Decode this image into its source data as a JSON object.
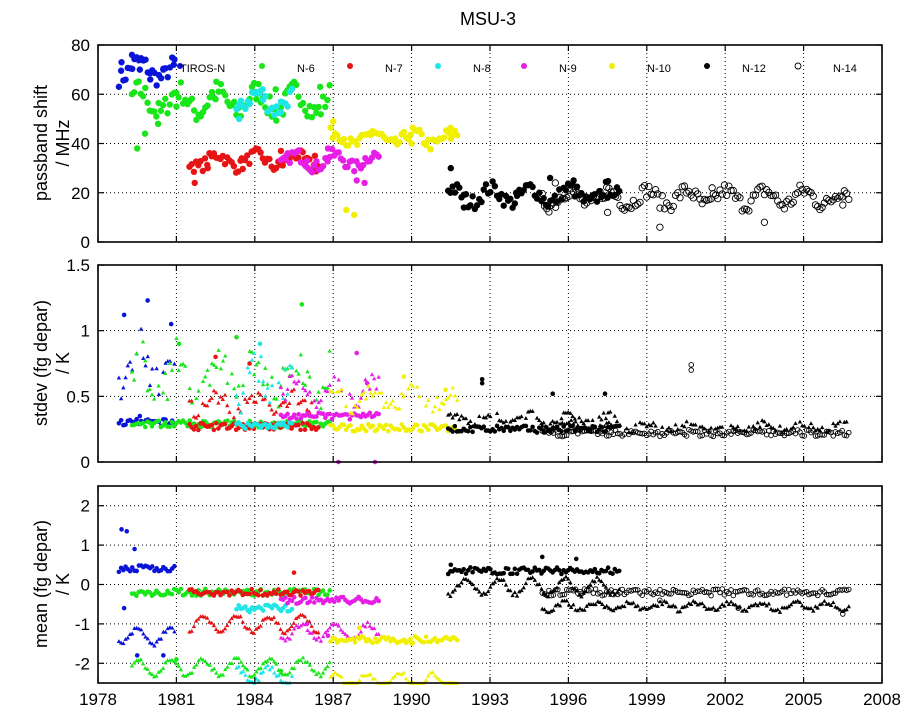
{
  "title": "MSU-3",
  "colors": {
    "TIROS-N": "#0a14d8",
    "N-6": "#19e619",
    "N-7": "#e61414",
    "N-8": "#1ee6e6",
    "N-9": "#e61ee6",
    "N-10": "#f0f000",
    "N-12": "#000000",
    "N-14": "#000000"
  },
  "chart_data": [
    {
      "type": "scatter",
      "title": "MSU-3",
      "ylabel": [
        "passband shift",
        "/ MHz"
      ],
      "xlim": [
        1978,
        2008
      ],
      "ylim": [
        0,
        80
      ],
      "yticks": [
        "0",
        "20",
        "40",
        "60",
        "80"
      ],
      "grid": true,
      "legend_position": "top, inside plot",
      "series": [
        {
          "name": "TIROS-N",
          "x_range": [
            1978.8,
            1981.0
          ],
          "level": 70,
          "spread": 7,
          "marker": "filled",
          "points": [
            [
              1978.9,
              73
            ],
            [
              1979.3,
              76
            ],
            [
              1979.6,
              70
            ],
            [
              1980.0,
              66
            ],
            [
              1980.5,
              70
            ],
            [
              1980.9,
              72
            ]
          ]
        },
        {
          "name": "N-6",
          "x_range": [
            1979.3,
            1986.9
          ],
          "level": 57,
          "spread": 9,
          "marker": "filled",
          "points": [
            [
              1979.5,
              38
            ],
            [
              1979.8,
              44
            ],
            [
              1980.3,
              48
            ],
            [
              1981.0,
              55
            ],
            [
              1982.5,
              58
            ],
            [
              1984.8,
              62
            ],
            [
              1986.5,
              63
            ]
          ]
        },
        {
          "name": "N-7",
          "x_range": [
            1981.5,
            1986.5
          ],
          "level": 33,
          "spread": 5,
          "marker": "filled",
          "points": [
            [
              1981.7,
              24
            ],
            [
              1982.2,
              30
            ],
            [
              1983.5,
              34
            ],
            [
              1985.0,
              37
            ],
            [
              1986.3,
              35
            ]
          ]
        },
        {
          "name": "N-8",
          "x_range": [
            1983.3,
            1985.5
          ],
          "level": 57,
          "spread": 7,
          "marker": "filled",
          "points": [
            [
              1983.4,
              50
            ],
            [
              1983.8,
              56
            ],
            [
              1984.3,
              62
            ],
            [
              1985.0,
              57
            ]
          ]
        },
        {
          "name": "N-9",
          "x_range": [
            1985.0,
            1988.8
          ],
          "level": 33,
          "spread": 5,
          "marker": "filled",
          "points": [
            [
              1985.2,
              35
            ],
            [
              1986.0,
              33
            ],
            [
              1986.8,
              38
            ],
            [
              1987.9,
              25
            ],
            [
              1988.2,
              24
            ]
          ]
        },
        {
          "name": "N-10",
          "x_range": [
            1986.9,
            1991.8
          ],
          "level": 42,
          "spread": 5,
          "marker": "filled",
          "points": [
            [
              1987.0,
              49
            ],
            [
              1987.5,
              13
            ],
            [
              1987.8,
              11
            ],
            [
              1988.5,
              45
            ],
            [
              1990.0,
              40
            ],
            [
              1991.5,
              42
            ]
          ]
        },
        {
          "name": "N-12",
          "x_range": [
            1991.4,
            1998.0
          ],
          "level": 19,
          "spread": 6,
          "marker": "filled",
          "points": [
            [
              1991.5,
              30
            ],
            [
              1992.0,
              14
            ],
            [
              1994.0,
              20
            ],
            [
              1995.3,
              26
            ],
            [
              1996.2,
              25
            ],
            [
              1997.5,
              18
            ]
          ]
        },
        {
          "name": "N-14",
          "x_range": [
            1995.0,
            2006.8
          ],
          "level": 18,
          "spread": 6,
          "marker": "open circle",
          "points": [
            [
              1995.5,
              24
            ],
            [
              1997.5,
              12
            ],
            [
              1999.5,
              6
            ],
            [
              2001.5,
              22
            ],
            [
              2003.5,
              8
            ],
            [
              2006.5,
              15
            ]
          ]
        }
      ]
    },
    {
      "type": "scatter",
      "ylabel": [
        "stdev (fg depar)",
        "/ K"
      ],
      "xlim": [
        1978,
        2008
      ],
      "ylim": [
        0,
        1.5
      ],
      "yticks": [
        "0",
        "0.5",
        "1",
        "1.5"
      ],
      "grid": true,
      "markers": "circles and triangles per satellite",
      "series": [
        {
          "name": "TIROS-N",
          "x_range": [
            1978.8,
            1981.0
          ],
          "circle_level": 0.3,
          "triangle_level": 0.75,
          "triangle_spread": 0.3,
          "points": [
            [
              1979.0,
              1.12
            ],
            [
              1979.9,
              1.23
            ],
            [
              1980.8,
              1.05
            ],
            [
              1979.6,
              0.35
            ]
          ]
        },
        {
          "name": "N-6",
          "x_range": [
            1979.3,
            1986.9
          ],
          "circle_level": 0.29,
          "triangle_level": 0.65,
          "triangle_spread": 0.3,
          "points": [
            [
              1981.1,
              0.9
            ],
            [
              1983.3,
              0.95
            ],
            [
              1985.8,
              1.2
            ]
          ]
        },
        {
          "name": "N-7",
          "x_range": [
            1981.5,
            1986.5
          ],
          "circle_level": 0.27,
          "triangle_level": 0.45,
          "triangle_spread": 0.12,
          "points": [
            [
              1982.5,
              0.8
            ],
            [
              1983.8,
              0.75
            ]
          ]
        },
        {
          "name": "N-8",
          "x_range": [
            1983.3,
            1985.5
          ],
          "circle_level": 0.28,
          "triangle_level": 0.6,
          "triangle_spread": 0.25,
          "points": [
            [
              1984.2,
              0.9
            ]
          ]
        },
        {
          "name": "N-9",
          "x_range": [
            1985.0,
            1988.8
          ],
          "circle_level": 0.35,
          "triangle_level": 0.55,
          "triangle_spread": 0.15,
          "points": [
            [
              1987.9,
              0.83
            ],
            [
              1988.3,
              0.6
            ],
            [
              1987.2,
              0.0
            ],
            [
              1988.6,
              0.0
            ]
          ]
        },
        {
          "name": "N-10",
          "x_range": [
            1986.9,
            1991.8
          ],
          "circle_level": 0.26,
          "triangle_level": 0.48,
          "triangle_spread": 0.12,
          "points": [
            [
              1989.7,
              0.65
            ],
            [
              1991.3,
              0.55
            ]
          ]
        },
        {
          "name": "N-12",
          "x_range": [
            1991.4,
            1998.0
          ],
          "circle_level": 0.25,
          "triangle_level": 0.33,
          "triangle_spread": 0.06,
          "points": [
            [
              1992.7,
              0.63
            ],
            [
              1992.7,
              0.6
            ],
            [
              1995.4,
              0.52
            ],
            [
              1997.4,
              0.52
            ]
          ]
        },
        {
          "name": "N-14",
          "x_range": [
            1995.0,
            2006.8
          ],
          "circle_level": 0.22,
          "triangle_level": 0.27,
          "triangle_spread": 0.05,
          "points": [
            [
              2000.7,
              0.74
            ],
            [
              2000.7,
              0.7
            ]
          ]
        }
      ]
    },
    {
      "type": "scatter",
      "ylabel": [
        "mean (fg depar)",
        "/ K"
      ],
      "xlabel": "",
      "xlim": [
        1978,
        2008
      ],
      "ylim": [
        -2.5,
        2.5
      ],
      "yticks": [
        "-2",
        "-1",
        "0",
        "1",
        "2"
      ],
      "xticks": [
        "1978",
        "1981",
        "1984",
        "1987",
        "1990",
        "1993",
        "1996",
        "1999",
        "2002",
        "2005",
        "2008"
      ],
      "grid": true,
      "markers": "circles and triangles per satellite",
      "series": [
        {
          "name": "TIROS-N",
          "x_range": [
            1978.8,
            1981.0
          ],
          "circle_level": 0.4,
          "triangle_level": -1.3,
          "points": [
            [
              1978.9,
              1.4
            ],
            [
              1979.1,
              1.35
            ],
            [
              1979.4,
              0.9
            ],
            [
              1979.0,
              -0.6
            ],
            [
              1979.5,
              -1.8
            ],
            [
              1980.5,
              -1.8
            ]
          ]
        },
        {
          "name": "N-6",
          "x_range": [
            1979.3,
            1986.9
          ],
          "circle_level": -0.2,
          "triangle_level": -2.1,
          "points": [
            [
              1981.0,
              -1.9
            ],
            [
              1985.0,
              -2.2
            ]
          ]
        },
        {
          "name": "N-7",
          "x_range": [
            1981.5,
            1986.5
          ],
          "circle_level": -0.2,
          "triangle_level": -1.0,
          "points": [
            [
              1982.5,
              -0.2
            ],
            [
              1985.5,
              0.3
            ]
          ]
        },
        {
          "name": "N-8",
          "x_range": [
            1983.3,
            1985.5
          ],
          "circle_level": -0.6,
          "triangle_level": -2.3,
          "points": [
            [
              1983.8,
              -0.7
            ]
          ]
        },
        {
          "name": "N-9",
          "x_range": [
            1985.0,
            1988.8
          ],
          "circle_level": -0.4,
          "triangle_level": -1.2,
          "points": [
            [
              1986.0,
              -1.0
            ],
            [
              1986.8,
              -1.3
            ]
          ]
        },
        {
          "name": "N-10",
          "x_range": [
            1986.9,
            1991.8
          ],
          "circle_level": -1.4,
          "triangle_level": -2.45,
          "points": [
            [
              1988.0,
              -1.1
            ],
            [
              1990.0,
              -1.5
            ]
          ]
        },
        {
          "name": "N-12",
          "x_range": [
            1991.4,
            1998.0
          ],
          "circle_level": 0.35,
          "triangle_level": -0.05,
          "points": [
            [
              1991.5,
              0.5
            ],
            [
              1995.0,
              0.7
            ],
            [
              1996.3,
              0.65
            ]
          ]
        },
        {
          "name": "N-14",
          "x_range": [
            1995.0,
            2006.8
          ],
          "circle_level": -0.2,
          "triangle_level": -0.55,
          "points": [
            [
              1999.5,
              -0.4
            ],
            [
              2002.5,
              -0.6
            ],
            [
              2006.5,
              -0.75
            ]
          ]
        }
      ]
    }
  ]
}
